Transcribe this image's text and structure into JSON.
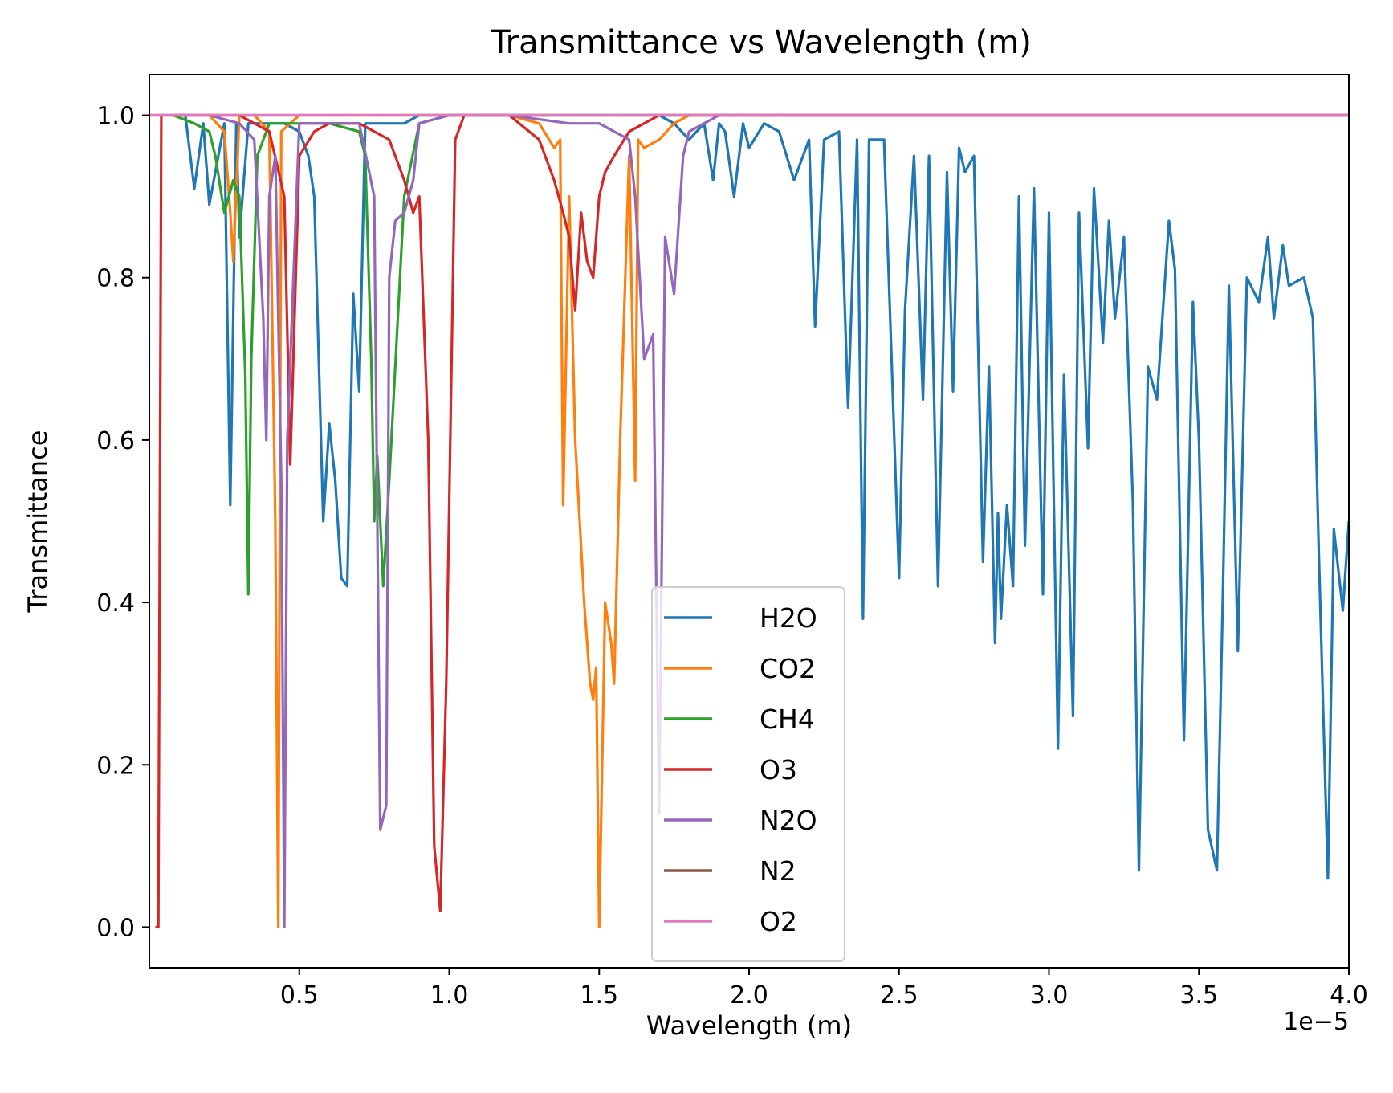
{
  "chart_data": {
    "type": "line",
    "title": "Transmittance vs Wavelength (m)",
    "xlabel": "Wavelength (m)",
    "ylabel": "Transmittance",
    "x_offset_text": "1e−5",
    "xlim": [
      0.0,
      4.0
    ],
    "ylim": [
      -0.05,
      1.05
    ],
    "x_scale_note": "x values shown in units of 1e-5 m",
    "xticks": [
      0.5,
      1.0,
      1.5,
      2.0,
      2.5,
      3.0,
      3.5,
      4.0
    ],
    "xtick_labels": [
      "0.5",
      "1.0",
      "1.5",
      "2.0",
      "2.5",
      "3.0",
      "3.5",
      "4.0"
    ],
    "yticks": [
      0.0,
      0.2,
      0.4,
      0.6,
      0.8,
      1.0
    ],
    "ytick_labels": [
      "0.0",
      "0.2",
      "0.4",
      "0.6",
      "0.8",
      "1.0"
    ],
    "grid": false,
    "legend_position": "bottom-center",
    "series": [
      {
        "name": "H2O",
        "color": "#1f77b4",
        "x": [
          0.08,
          0.12,
          0.15,
          0.18,
          0.2,
          0.22,
          0.25,
          0.27,
          0.29,
          0.3,
          0.33,
          0.36,
          0.4,
          0.45,
          0.5,
          0.53,
          0.55,
          0.58,
          0.6,
          0.62,
          0.64,
          0.66,
          0.68,
          0.7,
          0.72,
          0.75,
          0.78,
          0.8,
          0.85,
          0.9,
          1.0,
          1.2,
          1.4,
          1.6,
          1.7,
          1.75,
          1.8,
          1.85,
          1.88,
          1.9,
          1.92,
          1.95,
          1.98,
          2.0,
          2.05,
          2.1,
          2.15,
          2.2,
          2.22,
          2.25,
          2.3,
          2.33,
          2.36,
          2.38,
          2.4,
          2.45,
          2.5,
          2.52,
          2.55,
          2.58,
          2.6,
          2.63,
          2.66,
          2.68,
          2.7,
          2.72,
          2.75,
          2.78,
          2.8,
          2.82,
          2.83,
          2.84,
          2.86,
          2.88,
          2.9,
          2.92,
          2.95,
          2.98,
          3.0,
          3.03,
          3.05,
          3.08,
          3.1,
          3.13,
          3.15,
          3.18,
          3.2,
          3.22,
          3.25,
          3.28,
          3.3,
          3.33,
          3.36,
          3.4,
          3.42,
          3.45,
          3.48,
          3.5,
          3.53,
          3.56,
          3.58,
          3.6,
          3.63,
          3.66,
          3.7,
          3.73,
          3.75,
          3.78,
          3.8,
          3.85,
          3.88,
          3.9,
          3.93,
          3.95,
          3.98,
          4.0
        ],
        "y": [
          1.0,
          1.0,
          0.91,
          0.99,
          0.89,
          0.93,
          0.99,
          0.52,
          0.99,
          0.85,
          0.99,
          0.99,
          0.99,
          0.99,
          0.98,
          0.95,
          0.9,
          0.5,
          0.62,
          0.55,
          0.43,
          0.42,
          0.78,
          0.66,
          0.99,
          0.99,
          0.99,
          0.99,
          0.99,
          1.0,
          1.0,
          1.0,
          1.0,
          1.0,
          1.0,
          0.99,
          0.97,
          0.99,
          0.92,
          0.99,
          0.98,
          0.9,
          0.99,
          0.96,
          0.99,
          0.98,
          0.92,
          0.97,
          0.74,
          0.97,
          0.98,
          0.64,
          0.97,
          0.38,
          0.97,
          0.97,
          0.43,
          0.76,
          0.95,
          0.65,
          0.95,
          0.42,
          0.93,
          0.66,
          0.96,
          0.93,
          0.95,
          0.45,
          0.69,
          0.35,
          0.51,
          0.38,
          0.52,
          0.42,
          0.9,
          0.47,
          0.91,
          0.41,
          0.88,
          0.22,
          0.68,
          0.26,
          0.88,
          0.59,
          0.91,
          0.72,
          0.87,
          0.75,
          0.85,
          0.52,
          0.07,
          0.69,
          0.65,
          0.87,
          0.81,
          0.23,
          0.77,
          0.6,
          0.12,
          0.07,
          0.41,
          0.79,
          0.34,
          0.8,
          0.77,
          0.85,
          0.75,
          0.84,
          0.79,
          0.8,
          0.75,
          0.46,
          0.06,
          0.49,
          0.39,
          0.5
        ]
      },
      {
        "name": "CO2",
        "color": "#ff7f0e",
        "x": [
          0.08,
          0.2,
          0.25,
          0.27,
          0.28,
          0.3,
          0.35,
          0.4,
          0.42,
          0.43,
          0.44,
          0.5,
          0.8,
          1.0,
          1.2,
          1.3,
          1.35,
          1.37,
          1.38,
          1.4,
          1.42,
          1.45,
          1.47,
          1.48,
          1.49,
          1.5,
          1.52,
          1.54,
          1.55,
          1.57,
          1.6,
          1.62,
          1.63,
          1.65,
          1.7,
          1.75,
          1.8,
          2.0,
          3.0,
          4.0
        ],
        "y": [
          1.0,
          1.0,
          0.98,
          0.88,
          0.82,
          1.0,
          1.0,
          0.98,
          0.5,
          0.0,
          0.98,
          1.0,
          1.0,
          1.0,
          1.0,
          0.99,
          0.96,
          0.97,
          0.52,
          0.9,
          0.6,
          0.4,
          0.3,
          0.28,
          0.32,
          0.0,
          0.4,
          0.35,
          0.3,
          0.6,
          0.95,
          0.55,
          0.97,
          0.96,
          0.97,
          0.99,
          1.0,
          1.0,
          1.0,
          1.0
        ]
      },
      {
        "name": "CH4",
        "color": "#2ca02c",
        "x": [
          0.08,
          0.15,
          0.2,
          0.22,
          0.25,
          0.28,
          0.3,
          0.32,
          0.33,
          0.34,
          0.36,
          0.4,
          0.5,
          0.6,
          0.7,
          0.72,
          0.74,
          0.75,
          0.76,
          0.78,
          0.8,
          0.85,
          0.9,
          1.0,
          2.0,
          4.0
        ],
        "y": [
          1.0,
          0.99,
          0.98,
          0.95,
          0.88,
          0.92,
          0.9,
          0.68,
          0.41,
          0.7,
          0.95,
          0.99,
          0.99,
          0.99,
          0.98,
          0.95,
          0.7,
          0.5,
          0.58,
          0.42,
          0.55,
          0.9,
          0.99,
          1.0,
          1.0,
          1.0
        ]
      },
      {
        "name": "O3",
        "color": "#d62728",
        "x": [
          0.02,
          0.03,
          0.04,
          0.05,
          0.1,
          0.3,
          0.4,
          0.45,
          0.47,
          0.5,
          0.55,
          0.6,
          0.7,
          0.8,
          0.85,
          0.88,
          0.9,
          0.93,
          0.95,
          0.97,
          0.99,
          1.02,
          1.05,
          1.1,
          1.2,
          1.3,
          1.35,
          1.38,
          1.4,
          1.42,
          1.44,
          1.46,
          1.48,
          1.5,
          1.52,
          1.55,
          1.6,
          1.65,
          1.7,
          2.0,
          4.0
        ],
        "y": [
          0.0,
          0.0,
          1.0,
          1.0,
          1.0,
          1.0,
          0.98,
          0.9,
          0.57,
          0.95,
          0.98,
          0.99,
          0.99,
          0.97,
          0.92,
          0.88,
          0.9,
          0.6,
          0.1,
          0.02,
          0.3,
          0.97,
          1.0,
          1.0,
          1.0,
          0.97,
          0.92,
          0.88,
          0.85,
          0.76,
          0.88,
          0.82,
          0.8,
          0.9,
          0.93,
          0.95,
          0.98,
          0.99,
          1.0,
          1.0,
          1.0
        ]
      },
      {
        "name": "N2O",
        "color": "#9467bd",
        "x": [
          0.08,
          0.2,
          0.3,
          0.35,
          0.38,
          0.39,
          0.4,
          0.42,
          0.44,
          0.45,
          0.46,
          0.5,
          0.6,
          0.7,
          0.75,
          0.77,
          0.79,
          0.8,
          0.82,
          0.85,
          0.88,
          0.9,
          1.0,
          1.2,
          1.4,
          1.5,
          1.6,
          1.62,
          1.65,
          1.68,
          1.7,
          1.72,
          1.75,
          1.78,
          1.8,
          1.9,
          2.0,
          4.0
        ],
        "y": [
          1.0,
          1.0,
          0.99,
          0.97,
          0.75,
          0.6,
          0.9,
          0.95,
          0.55,
          0.0,
          0.6,
          0.99,
          0.99,
          0.99,
          0.9,
          0.12,
          0.15,
          0.8,
          0.87,
          0.88,
          0.92,
          0.99,
          1.0,
          1.0,
          0.99,
          0.99,
          0.97,
          0.9,
          0.7,
          0.73,
          0.14,
          0.85,
          0.78,
          0.95,
          0.98,
          1.0,
          1.0,
          1.0
        ]
      },
      {
        "name": "N2",
        "color": "#8c564b",
        "x": [
          0.0,
          4.0
        ],
        "y": [
          1.0,
          1.0
        ]
      },
      {
        "name": "O2",
        "color": "#e377c2",
        "x": [
          0.0,
          4.0
        ],
        "y": [
          1.0,
          1.0
        ]
      }
    ]
  }
}
